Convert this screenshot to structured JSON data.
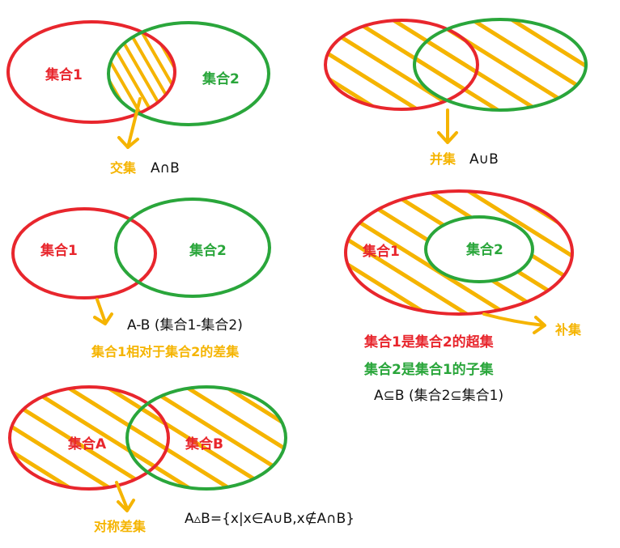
{
  "colors": {
    "red": "#e8262d",
    "green": "#2aa63b",
    "yellow": "#f5b400",
    "text": "#111111"
  },
  "intersection": {
    "set1": "集合1",
    "set2": "集合2",
    "name": "交集",
    "formula": "A∩B"
  },
  "union": {
    "name": "并集",
    "formula": "A∪B"
  },
  "difference": {
    "set1": "集合1",
    "set2": "集合2",
    "formula": "A-B (集合1-集合2)",
    "description": "集合1相对于集合2的差集"
  },
  "complement": {
    "set1": "集合1",
    "set2": "集合2",
    "name": "补集",
    "superset_text": "集合1是集合2的超集",
    "subset_text": "集合2是集合1的子集",
    "formula": "A⊆B (集合2⊆集合1)"
  },
  "symmetric": {
    "setA": "集合A",
    "setB": "集合B",
    "name": "对称差集",
    "formula": "A▵B={x|x∈A∪B,x∉A∩B}"
  }
}
